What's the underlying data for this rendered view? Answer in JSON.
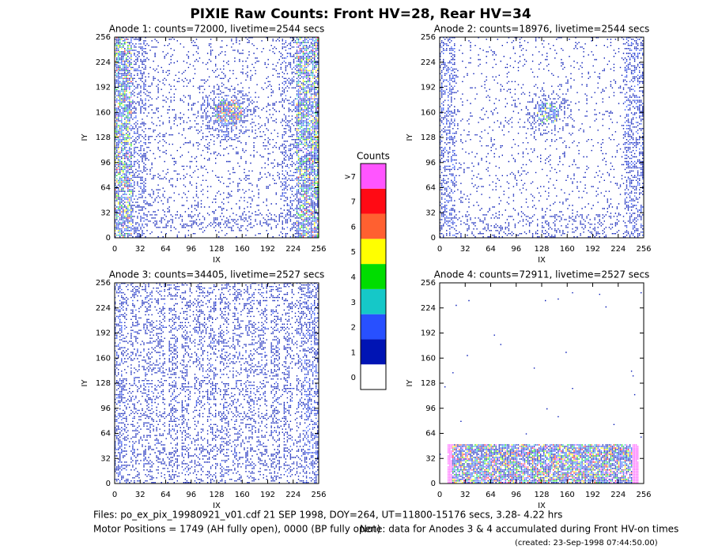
{
  "title": "PIXIE Raw Counts:  Front HV=28, Rear HV=34",
  "chart_data": [
    {
      "type": "heatmap",
      "title": "Anode 1: counts=72000, livetime=2544 secs",
      "xlabel": "IX",
      "ylabel": "IY",
      "xlim": [
        0,
        256
      ],
      "ylim": [
        0,
        256
      ],
      "xticks": [
        0,
        32,
        64,
        96,
        128,
        160,
        192,
        224,
        256
      ],
      "yticks": [
        0,
        32,
        64,
        96,
        128,
        160,
        192,
        224,
        256
      ]
    },
    {
      "type": "heatmap",
      "title": "Anode 2: counts=18976, livetime=2544 secs",
      "xlabel": "IX",
      "ylabel": "IY",
      "xlim": [
        0,
        256
      ],
      "ylim": [
        0,
        256
      ],
      "xticks": [
        0,
        32,
        64,
        96,
        128,
        160,
        192,
        224,
        256
      ],
      "yticks": [
        0,
        32,
        64,
        96,
        128,
        160,
        192,
        224,
        256
      ]
    },
    {
      "type": "heatmap",
      "title": "Anode 3: counts=34405, livetime=2527 secs",
      "xlabel": "IX",
      "ylabel": "IY",
      "xlim": [
        0,
        256
      ],
      "ylim": [
        0,
        256
      ],
      "xticks": [
        0,
        32,
        64,
        96,
        128,
        160,
        192,
        224,
        256
      ],
      "yticks": [
        0,
        32,
        64,
        96,
        128,
        160,
        192,
        224,
        256
      ]
    },
    {
      "type": "heatmap",
      "title": "Anode 4: counts=72911, livetime=2527 secs",
      "xlabel": "IX",
      "ylabel": "IY",
      "xlim": [
        0,
        256
      ],
      "ylim": [
        0,
        256
      ],
      "xticks": [
        0,
        32,
        64,
        96,
        128,
        160,
        192,
        224,
        256
      ],
      "yticks": [
        0,
        32,
        64,
        96,
        128,
        160,
        192,
        224,
        256
      ]
    }
  ],
  "colorbar": {
    "title": "Counts",
    "labels": [
      "0",
      "1",
      "2",
      "3",
      "4",
      "5",
      "6",
      "7",
      ">7"
    ],
    "colors": [
      "#ffffff",
      "#0014b4",
      "#2850ff",
      "#15c8c8",
      "#00dd00",
      "#ffff00",
      "#ff6030",
      "#ff0a14",
      "#ff55ff"
    ]
  },
  "footer": {
    "files": "Files: po_ex_pix_19980921_v01.cdf   21 SEP 1998, DOY=264, UT=11800-15176 secs,  3.28- 4.22 hrs",
    "motor": "Motor Positions = 1749 (AH fully open), 0000 (BP fully open)",
    "note": "Note: data for Anodes 3 & 4 accumulated during Front HV-on times",
    "created": "(created: 23-Sep-1998 07:44:50.00)"
  }
}
